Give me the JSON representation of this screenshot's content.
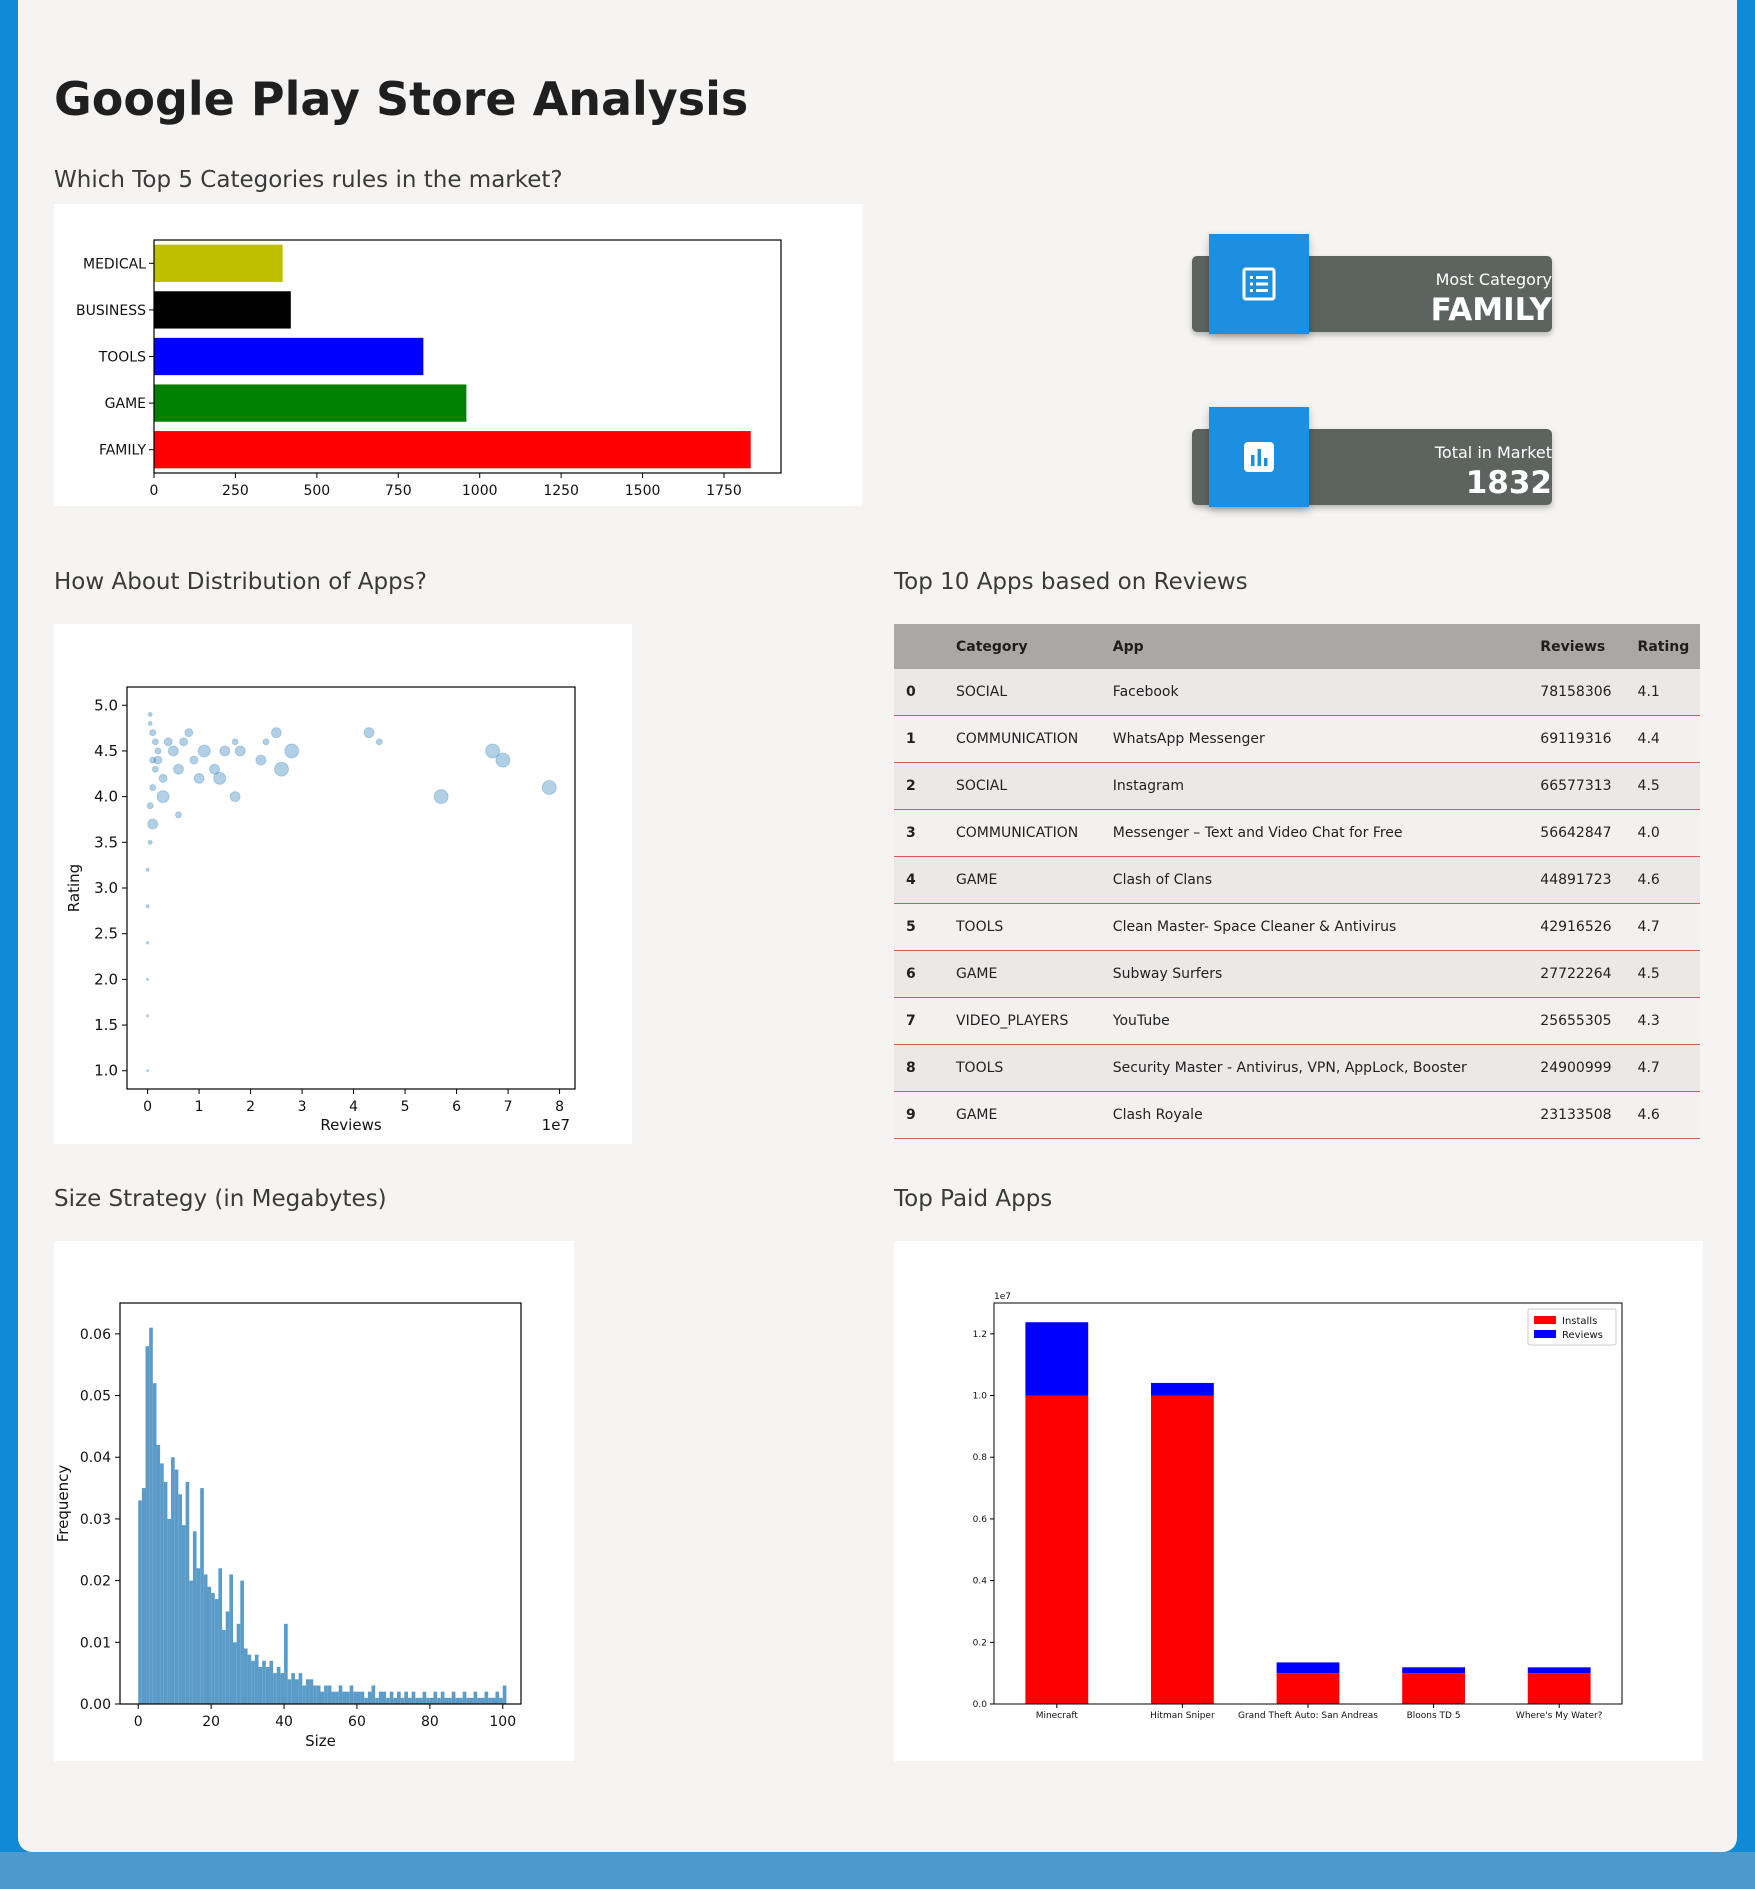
{
  "page": {
    "title": "Google Play Store Analysis"
  },
  "sections": {
    "categories": "Which Top 5 Categories rules in the market?",
    "distribution": "How About Distribution of Apps?",
    "top10": "Top 10 Apps based on Reviews",
    "size": "Size Strategy (in Megabytes)",
    "paid": "Top Paid Apps"
  },
  "kpis": {
    "most_category": {
      "label": "Most Category",
      "value": "FAMILY",
      "icon": "list-icon"
    },
    "total_market": {
      "label": "Total in Market",
      "value": "1832",
      "icon": "bar-chart-icon"
    }
  },
  "table": {
    "headers": [
      "",
      "Category",
      "App",
      "Reviews",
      "Rating"
    ],
    "rows": [
      {
        "idx": "0",
        "category": "SOCIAL",
        "app": "Facebook",
        "reviews": "78158306",
        "rating": "4.1"
      },
      {
        "idx": "1",
        "category": "COMMUNICATION",
        "app": "WhatsApp Messenger",
        "reviews": "69119316",
        "rating": "4.4"
      },
      {
        "idx": "2",
        "category": "SOCIAL",
        "app": "Instagram",
        "reviews": "66577313",
        "rating": "4.5"
      },
      {
        "idx": "3",
        "category": "COMMUNICATION",
        "app": "Messenger – Text and Video Chat for Free",
        "reviews": "56642847",
        "rating": "4.0"
      },
      {
        "idx": "4",
        "category": "GAME",
        "app": "Clash of Clans",
        "reviews": "44891723",
        "rating": "4.6"
      },
      {
        "idx": "5",
        "category": "TOOLS",
        "app": "Clean Master- Space Cleaner & Antivirus",
        "reviews": "42916526",
        "rating": "4.7"
      },
      {
        "idx": "6",
        "category": "GAME",
        "app": "Subway Surfers",
        "reviews": "27722264",
        "rating": "4.5"
      },
      {
        "idx": "7",
        "category": "VIDEO_PLAYERS",
        "app": "YouTube",
        "reviews": "25655305",
        "rating": "4.3"
      },
      {
        "idx": "8",
        "category": "TOOLS",
        "app": "Security Master - Antivirus, VPN, AppLock, Booster",
        "reviews": "24900999",
        "rating": "4.7"
      },
      {
        "idx": "9",
        "category": "GAME",
        "app": "Clash Royale",
        "reviews": "23133508",
        "rating": "4.6"
      }
    ]
  },
  "chart_data": [
    {
      "id": "categories",
      "type": "bar",
      "orientation": "horizontal",
      "categories": [
        "FAMILY",
        "GAME",
        "TOOLS",
        "BUSINESS",
        "MEDICAL"
      ],
      "values": [
        1832,
        959,
        827,
        420,
        395
      ],
      "colors": [
        "#ff0000",
        "#008000",
        "#0000ff",
        "#000000",
        "#bfbf00"
      ],
      "xlim": [
        0,
        1925
      ],
      "xticks": [
        "0",
        "250",
        "500",
        "750",
        "1000",
        "1250",
        "1500",
        "1750"
      ]
    },
    {
      "id": "distribution",
      "type": "scatter",
      "xlabel": "Reviews",
      "ylabel": "Rating",
      "x_offset_label": "1e7",
      "xlim": [
        -0.4,
        8.3
      ],
      "ylim": [
        0.8,
        5.2
      ],
      "xticks": [
        "0",
        "1",
        "2",
        "3",
        "4",
        "5",
        "6",
        "7",
        "8"
      ],
      "yticks": [
        "1.0",
        "1.5",
        "2.0",
        "2.5",
        "3.0",
        "3.5",
        "4.0",
        "4.5",
        "5.0"
      ],
      "color": "#1f77b4",
      "points": [
        {
          "x": 7.8,
          "y": 4.1,
          "s": 7
        },
        {
          "x": 6.9,
          "y": 4.4,
          "s": 7
        },
        {
          "x": 6.7,
          "y": 4.5,
          "s": 7
        },
        {
          "x": 5.7,
          "y": 4.0,
          "s": 7
        },
        {
          "x": 4.5,
          "y": 4.6,
          "s": 3
        },
        {
          "x": 4.3,
          "y": 4.7,
          "s": 5
        },
        {
          "x": 2.8,
          "y": 4.5,
          "s": 7
        },
        {
          "x": 2.6,
          "y": 4.3,
          "s": 7
        },
        {
          "x": 2.5,
          "y": 4.7,
          "s": 5
        },
        {
          "x": 2.3,
          "y": 4.6,
          "s": 3
        },
        {
          "x": 2.2,
          "y": 4.4,
          "s": 5
        },
        {
          "x": 1.7,
          "y": 4.0,
          "s": 5
        },
        {
          "x": 1.8,
          "y": 4.5,
          "s": 5
        },
        {
          "x": 1.7,
          "y": 4.6,
          "s": 3
        },
        {
          "x": 1.5,
          "y": 4.5,
          "s": 5
        },
        {
          "x": 1.4,
          "y": 4.2,
          "s": 6
        },
        {
          "x": 1.3,
          "y": 4.3,
          "s": 5
        },
        {
          "x": 1.1,
          "y": 4.5,
          "s": 6
        },
        {
          "x": 1.0,
          "y": 4.2,
          "s": 5
        },
        {
          "x": 0.8,
          "y": 4.7,
          "s": 4
        },
        {
          "x": 0.6,
          "y": 4.3,
          "s": 5
        },
        {
          "x": 0.7,
          "y": 4.6,
          "s": 4
        },
        {
          "x": 0.5,
          "y": 4.5,
          "s": 5
        },
        {
          "x": 0.3,
          "y": 4.0,
          "s": 6
        },
        {
          "x": 0.1,
          "y": 3.7,
          "s": 5
        },
        {
          "x": 0.6,
          "y": 3.8,
          "s": 3
        },
        {
          "x": 0.2,
          "y": 4.4,
          "s": 4
        },
        {
          "x": 0.4,
          "y": 4.6,
          "s": 4
        },
        {
          "x": 0.3,
          "y": 4.2,
          "s": 4
        },
        {
          "x": 0.9,
          "y": 4.4,
          "s": 4
        },
        {
          "x": 0.05,
          "y": 4.9,
          "s": 2
        },
        {
          "x": 0.05,
          "y": 4.8,
          "s": 2
        },
        {
          "x": 0.1,
          "y": 4.7,
          "s": 3
        },
        {
          "x": 0.15,
          "y": 4.6,
          "s": 3
        },
        {
          "x": 0.2,
          "y": 4.5,
          "s": 3
        },
        {
          "x": 0.1,
          "y": 4.4,
          "s": 3
        },
        {
          "x": 0.15,
          "y": 4.3,
          "s": 3
        },
        {
          "x": 0.1,
          "y": 4.1,
          "s": 3
        },
        {
          "x": 0.05,
          "y": 3.9,
          "s": 3
        },
        {
          "x": 0.05,
          "y": 3.5,
          "s": 2
        },
        {
          "x": 0.0,
          "y": 3.2,
          "s": 1.5
        },
        {
          "x": 0.0,
          "y": 2.8,
          "s": 1.5
        },
        {
          "x": 0.0,
          "y": 2.4,
          "s": 1.2
        },
        {
          "x": 0.0,
          "y": 2.0,
          "s": 1
        },
        {
          "x": 0.0,
          "y": 1.6,
          "s": 1
        },
        {
          "x": 0.0,
          "y": 1.0,
          "s": 1
        }
      ]
    },
    {
      "id": "size",
      "type": "bar",
      "subtype": "histogram",
      "xlabel": "Size",
      "ylabel": "Frequency",
      "xlim": [
        -5,
        105
      ],
      "ylim": [
        0,
        0.065
      ],
      "xticks": [
        "0",
        "20",
        "40",
        "60",
        "80",
        "100"
      ],
      "yticks": [
        "0.00",
        "0.01",
        "0.02",
        "0.03",
        "0.04",
        "0.05",
        "0.06"
      ],
      "color": "#5b9bc8",
      "bin_width": 1,
      "values": [
        0.033,
        0.035,
        0.058,
        0.061,
        0.052,
        0.042,
        0.039,
        0.036,
        0.03,
        0.04,
        0.038,
        0.034,
        0.029,
        0.036,
        0.02,
        0.028,
        0.022,
        0.035,
        0.021,
        0.019,
        0.018,
        0.017,
        0.022,
        0.012,
        0.015,
        0.021,
        0.01,
        0.013,
        0.02,
        0.009,
        0.008,
        0.007,
        0.008,
        0.006,
        0.007,
        0.006,
        0.007,
        0.005,
        0.006,
        0.005,
        0.013,
        0.004,
        0.005,
        0.004,
        0.005,
        0.003,
        0.004,
        0.004,
        0.003,
        0.003,
        0.002,
        0.003,
        0.003,
        0.002,
        0.002,
        0.003,
        0.002,
        0.002,
        0.003,
        0.002,
        0.002,
        0.002,
        0.001,
        0.002,
        0.003,
        0.001,
        0.002,
        0.002,
        0.001,
        0.002,
        0.001,
        0.002,
        0.001,
        0.002,
        0.001,
        0.002,
        0.001,
        0.001,
        0.002,
        0.001,
        0.001,
        0.002,
        0.001,
        0.002,
        0.001,
        0.001,
        0.002,
        0.001,
        0.001,
        0.002,
        0.001,
        0.001,
        0.002,
        0.001,
        0.001,
        0.002,
        0.001,
        0.001,
        0.002,
        0.001,
        0.003
      ]
    },
    {
      "id": "paid",
      "type": "bar",
      "subtype": "stacked",
      "categories": [
        "Minecraft",
        "Hitman Sniper",
        "Grand Theft Auto: San Andreas",
        "Bloons TD 5",
        "Where's My Water?"
      ],
      "series": [
        {
          "name": "Installs",
          "color": "#ff0000",
          "values": [
            10000000,
            10000000,
            1000000,
            1000000,
            1000000
          ]
        },
        {
          "name": "Reviews",
          "color": "#0000ff",
          "values": [
            2376564,
            408292,
            348962,
            190086,
            188740
          ]
        }
      ],
      "y_offset_label": "1e7",
      "ylim": [
        0,
        1.3
      ],
      "yticks": [
        "0.0",
        "0.2",
        "0.4",
        "0.6",
        "0.8",
        "1.0",
        "1.2"
      ],
      "legend": "top-right"
    }
  ]
}
